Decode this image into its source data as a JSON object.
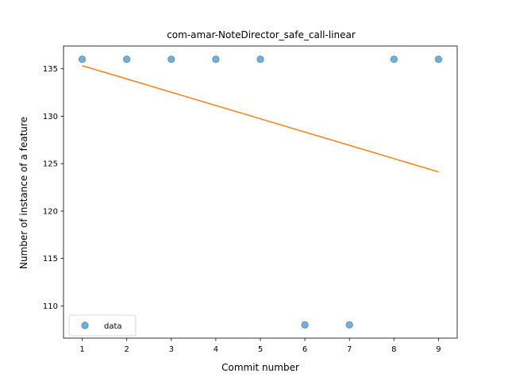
{
  "chart_data": {
    "type": "scatter",
    "title": "com-amar-NoteDirector_safe_call-linear",
    "xlabel": "Commit number",
    "ylabel": "Number of instance of a feature",
    "xlim": [
      0.58,
      9.42
    ],
    "ylim": [
      106.6,
      137.4
    ],
    "xticks": [
      1,
      2,
      3,
      4,
      5,
      6,
      7,
      8,
      9
    ],
    "yticks": [
      110,
      115,
      120,
      125,
      130,
      135
    ],
    "grid": false,
    "legend_position": "lower-left",
    "series": [
      {
        "name": "data",
        "kind": "scatter",
        "color": "#1f77b4",
        "x": [
          1,
          2,
          3,
          4,
          5,
          6,
          7,
          8,
          9
        ],
        "y": [
          136,
          136,
          136,
          136,
          136,
          108,
          108,
          136,
          136
        ]
      },
      {
        "kind": "line",
        "color": "#ff7f0e",
        "x": [
          1,
          9
        ],
        "y": [
          135.33,
          124.13
        ]
      }
    ]
  }
}
